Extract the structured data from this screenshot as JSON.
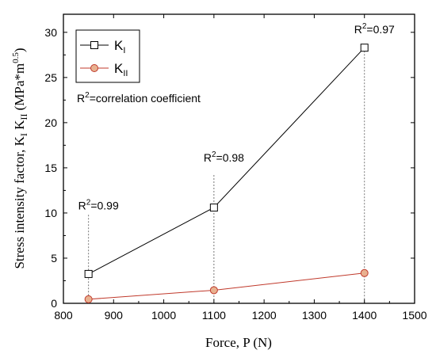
{
  "chart_data": {
    "type": "line",
    "xlabel": "Force, P (N)",
    "ylabel_main": "Stress intensity factor, K",
    "ylabel_sub1": "I",
    "ylabel_mid": " K",
    "ylabel_sub2": "II",
    "ylabel_unit": " (MPa*m",
    "ylabel_unit_sup": "0.5",
    "ylabel_close": ")",
    "xlim": [
      800,
      1500
    ],
    "ylim": [
      0,
      32
    ],
    "xticks": [
      800,
      900,
      1000,
      1100,
      1200,
      1300,
      1400,
      1500
    ],
    "yticks": [
      0,
      5,
      10,
      15,
      20,
      25,
      30
    ],
    "legend_position": "top-left",
    "series": [
      {
        "name_main": "K",
        "name_sub": "I",
        "color": "#000000",
        "marker": "square",
        "x": [
          850,
          1100,
          1400
        ],
        "y": [
          3.25,
          10.6,
          28.3
        ]
      },
      {
        "name_main": "K",
        "name_sub": "II",
        "color": "#c0392b",
        "marker": "circle",
        "x": [
          850,
          1100,
          1400
        ],
        "y": [
          0.45,
          1.45,
          3.35
        ]
      }
    ],
    "note": {
      "main": "R",
      "sup": "2",
      "rest": "=correlation coefficient"
    },
    "annotations": [
      {
        "x": 850,
        "y_top": 9.8,
        "y_bottom": 0.0,
        "main": "R",
        "sup": "2",
        "rest": "=0.99",
        "label_y": 10.4
      },
      {
        "x": 1100,
        "y_top": 14.2,
        "y_bottom": 0.0,
        "main": "R",
        "sup": "2",
        "rest": "=0.98",
        "label_y": 15.7
      },
      {
        "x": 1400,
        "y_top": 28.3,
        "y_bottom": 0.0,
        "main": "R",
        "sup": "2",
        "rest": "=0.97",
        "label_y": 29.9
      }
    ]
  }
}
